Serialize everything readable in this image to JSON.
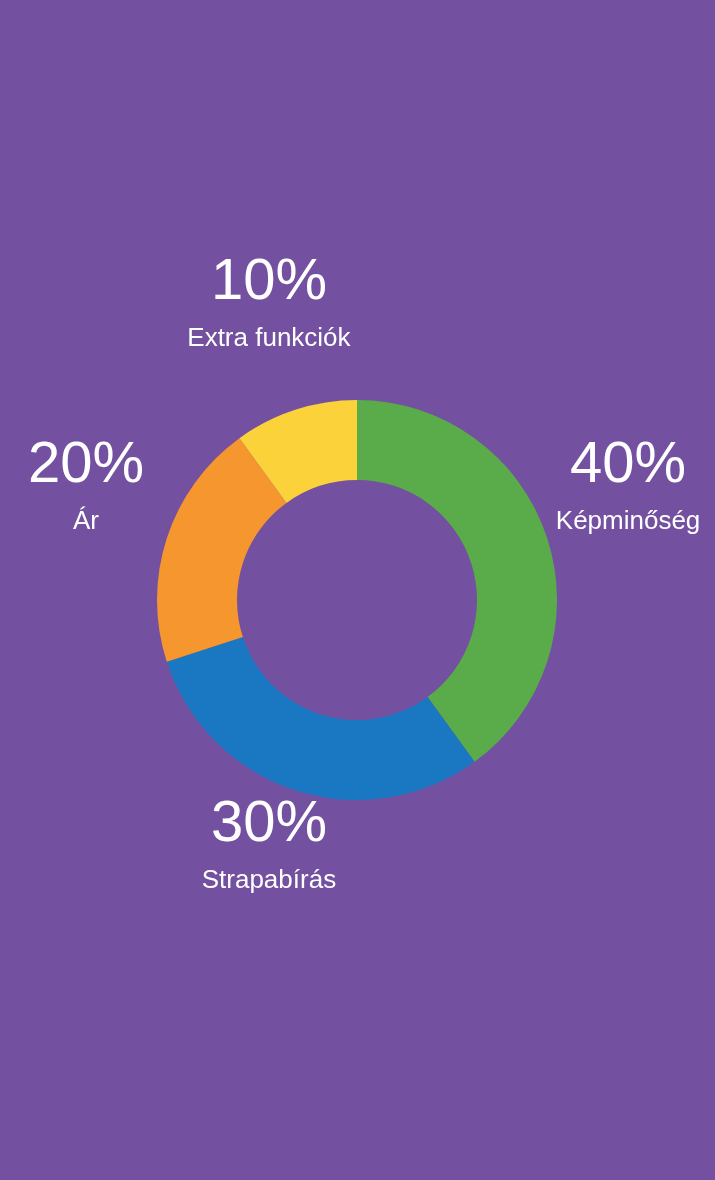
{
  "chart_data": {
    "type": "donut",
    "categories": [
      "Képminőség",
      "Strapabírás",
      "Ár",
      "Extra funkciók"
    ],
    "values": [
      40,
      30,
      20,
      10
    ],
    "colors": [
      "#5aab4a",
      "#1a78c2",
      "#f6962f",
      "#fcd23a"
    ],
    "value_labels": [
      "40%",
      "30%",
      "20%",
      "10%"
    ]
  }
}
